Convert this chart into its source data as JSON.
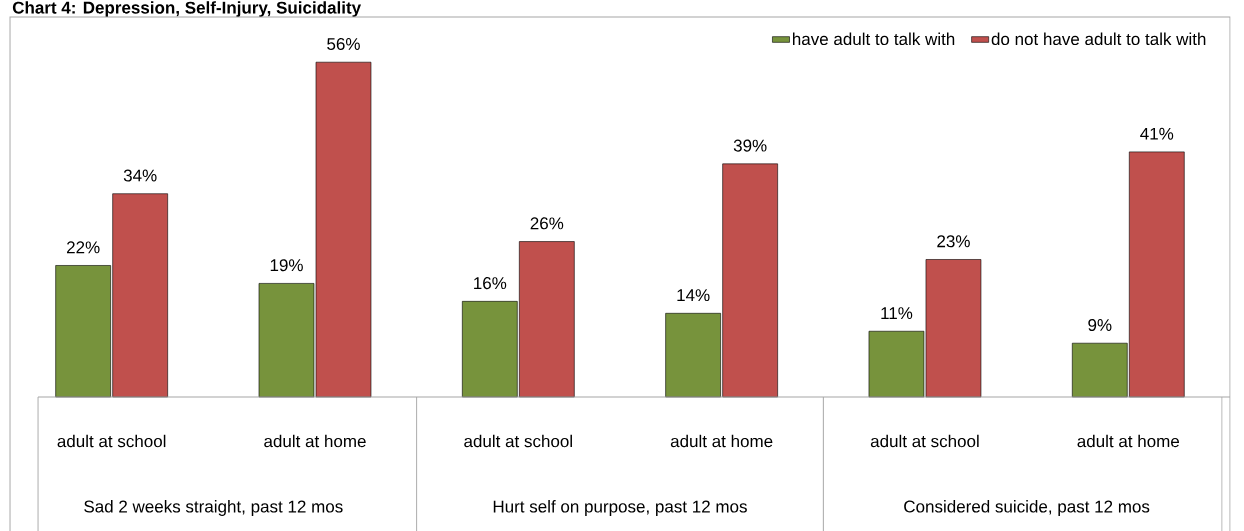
{
  "chart_data": {
    "type": "bar",
    "title": "Chart 4: Depression, Self-Injury, Suicidality",
    "categories": [
      "adult at school",
      "adult at home",
      "adult at school",
      "adult at home",
      "adult at school",
      "adult at home"
    ],
    "series": [
      {
        "name": "have adult to talk with",
        "color": "#77933c",
        "values": [
          22,
          19,
          16,
          14,
          11,
          9
        ],
        "value_labels": [
          "22%",
          "19%",
          "16%",
          "14%",
          "11%",
          "9%"
        ]
      },
      {
        "name": "do not have adult to talk with",
        "color": "#c0504d",
        "values": [
          34,
          56,
          26,
          39,
          23,
          41
        ],
        "value_labels": [
          "34%",
          "56%",
          "26%",
          "39%",
          "23%",
          "41%"
        ]
      }
    ],
    "annotations": [
      "Sad 2 weeks straight,  past 12 mos",
      "Hurt self on purpose, past 12 mos",
      "Considered suicide, past 12 mos"
    ],
    "legend": "top right"
  }
}
